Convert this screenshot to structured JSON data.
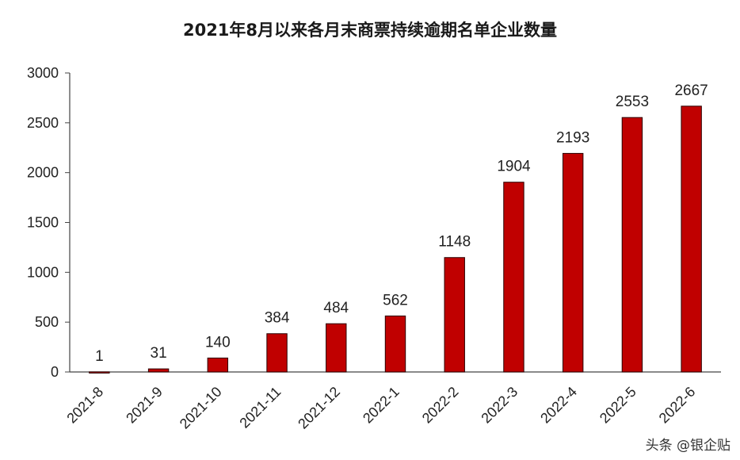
{
  "chart_data": {
    "type": "bar",
    "title": "2021年8月以来各月末商票持续逾期名单企业数量",
    "categories": [
      "2021-8",
      "2021-9",
      "2021-10",
      "2021-11",
      "2021-12",
      "2022-1",
      "2022-2",
      "2022-3",
      "2022-4",
      "2022-5",
      "2022-6"
    ],
    "values": [
      1,
      31,
      140,
      384,
      484,
      562,
      1148,
      1904,
      2193,
      2553,
      2667
    ],
    "xlabel": "",
    "ylabel": "",
    "ylim": [
      0,
      3000
    ],
    "yticks": [
      0,
      500,
      1000,
      1500,
      2000,
      2500,
      3000
    ],
    "bar_color": "#c00000",
    "bar_edge_color": "#2a0000",
    "grid": false,
    "legend": "none"
  },
  "watermark": "头条 @银企贴"
}
